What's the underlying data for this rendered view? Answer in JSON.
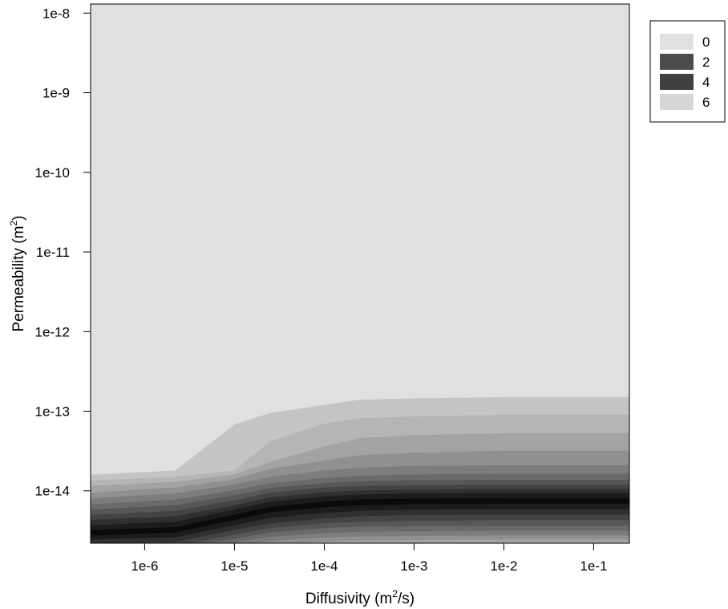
{
  "chart_data": {
    "type": "contour",
    "x_scale": "log",
    "y_scale": "log",
    "xlim": [
      2.5e-07,
      0.25
    ],
    "ylim": [
      2.2e-15,
      1.3e-08
    ],
    "grid": false,
    "legend_position": "top-right",
    "x_ticks": [
      {
        "value": 1e-06,
        "label": "1e-6"
      },
      {
        "value": 1e-05,
        "label": "1e-5"
      },
      {
        "value": 0.0001,
        "label": "1e-4"
      },
      {
        "value": 0.001,
        "label": "1e-3"
      },
      {
        "value": 0.01,
        "label": "1e-2"
      },
      {
        "value": 0.1,
        "label": "1e-1"
      }
    ],
    "y_ticks": [
      {
        "value": 1e-08,
        "label": "1e-8"
      },
      {
        "value": 1e-09,
        "label": "1e-9"
      },
      {
        "value": 1e-10,
        "label": "1e-10"
      },
      {
        "value": 1e-11,
        "label": "1e-11"
      },
      {
        "value": 1e-12,
        "label": "1e-12"
      },
      {
        "value": 1e-13,
        "label": "1e-13"
      },
      {
        "value": 1e-14,
        "label": "1e-14"
      }
    ],
    "xlabel": {
      "main": "Diffusivity (m",
      "sup": "2",
      "tail": "/s)"
    },
    "ylabel": {
      "main": "Permeability (m",
      "sup": "2",
      "tail": ")"
    },
    "legend": [
      {
        "label": "0",
        "color": "#e0e0e0"
      },
      {
        "label": "2",
        "color": "#4c4c4c"
      },
      {
        "label": "4",
        "color": "#404040"
      },
      {
        "label": "6",
        "color": "#d6d6d6"
      }
    ],
    "background_color": "#e0e0e0",
    "x_profile": [
      2.5e-07,
      2.2e-06,
      1e-05,
      2.5e-05,
      0.0001,
      0.00025,
      0.001,
      0.01,
      0.25
    ],
    "bands": [
      {
        "color": "#c4c4c4",
        "y": [
          1.6e-14,
          1.8e-14,
          6.8e-14,
          9.5e-14,
          1.2e-13,
          1.4e-13,
          1.45e-13,
          1.5e-13,
          1.5e-13
        ]
      },
      {
        "color": "#b5b5b5",
        "y": [
          1.35e-14,
          1.5e-14,
          1.8e-14,
          4.2e-14,
          7e-14,
          8.2e-14,
          8.6e-14,
          9e-14,
          9e-14
        ]
      },
      {
        "color": "#a3a3a3",
        "y": [
          1.15e-14,
          1.3e-14,
          1.6e-14,
          2.3e-14,
          3.6e-14,
          4.6e-14,
          5e-14,
          5.3e-14,
          5.3e-14
        ]
      },
      {
        "color": "#909090",
        "y": [
          9.5e-15,
          1.1e-14,
          1.4e-14,
          1.9e-14,
          2.4e-14,
          2.8e-14,
          3e-14,
          3.2e-14,
          3.2e-14
        ]
      },
      {
        "color": "#7d7d7d",
        "y": [
          8e-15,
          9.3e-15,
          1.2e-14,
          1.5e-14,
          1.8e-14,
          1.95e-14,
          2.05e-14,
          2.1e-14,
          2.1e-14
        ]
      },
      {
        "color": "#6a6a6a",
        "y": [
          6.8e-15,
          7.8e-15,
          1.02e-14,
          1.25e-14,
          1.45e-14,
          1.55e-14,
          1.6e-14,
          1.65e-14,
          1.65e-14
        ]
      },
      {
        "color": "#575757",
        "y": [
          5.8e-15,
          6.6e-15,
          8.8e-15,
          1.08e-14,
          1.25e-14,
          1.32e-14,
          1.36e-14,
          1.38e-14,
          1.38e-14
        ]
      },
      {
        "color": "#444444",
        "y": [
          5e-15,
          5.6e-15,
          7.6e-15,
          9.5e-15,
          1.1e-14,
          1.15e-14,
          1.18e-14,
          1.2e-14,
          1.2e-14
        ]
      },
      {
        "color": "#303030",
        "y": [
          4.3e-15,
          4.8e-15,
          6.6e-15,
          8.3e-15,
          9.6e-15,
          1.01e-14,
          1.04e-14,
          1.06e-14,
          1.06e-14
        ]
      },
      {
        "color": "#1c1c1c",
        "y": [
          3.7e-15,
          4.1e-15,
          5.8e-15,
          7.3e-15,
          8.5e-15,
          9e-15,
          9.3e-15,
          9.4e-15,
          9.4e-15
        ]
      },
      {
        "color": "#0a0a0a",
        "y": [
          3.2e-15,
          3.5e-15,
          5e-15,
          6.3e-15,
          7.3e-15,
          7.8e-15,
          8e-15,
          8.1e-15,
          8.1e-15
        ]
      },
      {
        "color": "#1c1c1c",
        "y": [
          2.75e-15,
          3e-15,
          4.3e-15,
          5.4e-15,
          6.2e-15,
          6.6e-15,
          6.8e-15,
          6.9e-15,
          6.9e-15
        ]
      },
      {
        "color": "#303030",
        "y": [
          2.45e-15,
          2.6e-15,
          3.7e-15,
          4.6e-15,
          5.3e-15,
          5.6e-15,
          5.8e-15,
          5.9e-15,
          5.9e-15
        ]
      },
      {
        "color": "#444444",
        "y": [
          2.2e-15,
          2.3e-15,
          3.2e-15,
          3.9e-15,
          4.5e-15,
          4.8e-15,
          4.95e-15,
          5e-15,
          5e-15
        ]
      },
      {
        "color": "#575757",
        "y": [
          2e-15,
          2.05e-15,
          2.8e-15,
          3.4e-15,
          3.9e-15,
          4.1e-15,
          4.2e-15,
          4.3e-15,
          4.3e-15
        ]
      },
      {
        "color": "#6a6a6a",
        "y": [
          2e-15,
          2e-15,
          2.5e-15,
          3e-15,
          3.4e-15,
          3.55e-15,
          3.6e-15,
          3.65e-15,
          3.65e-15
        ]
      },
      {
        "color": "#7d7d7d",
        "y": [
          2e-15,
          2e-15,
          2.25e-15,
          2.65e-15,
          2.95e-15,
          3.05e-15,
          3.1e-15,
          3.15e-15,
          3.15e-15
        ]
      },
      {
        "color": "#909090",
        "y": [
          2e-15,
          2e-15,
          2e-15,
          2.35e-15,
          2.6e-15,
          2.68e-15,
          2.72e-15,
          2.75e-15,
          2.75e-15
        ]
      },
      {
        "color": "#a3a3a3",
        "y": [
          2e-15,
          2e-15,
          2e-15,
          2.1e-15,
          2.3e-15,
          2.38e-15,
          2.42e-15,
          2.45e-15,
          2.45e-15
        ]
      }
    ]
  }
}
